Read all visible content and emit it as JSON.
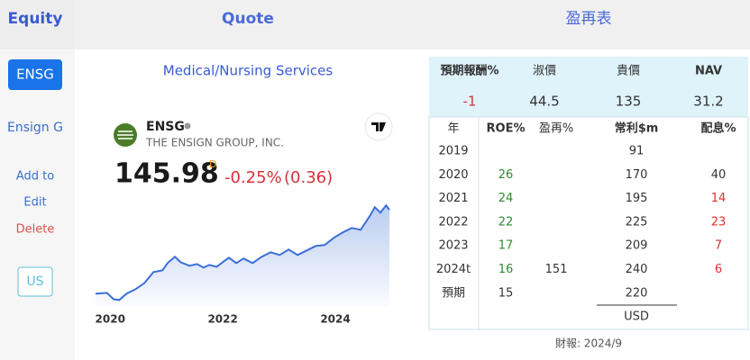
{
  "tabs": {
    "equity": "Equity",
    "quote": "Quote",
    "table": "盈再表"
  },
  "sidebar": {
    "ticker_button": "ENSG",
    "name": "Ensign G",
    "add": "Add to",
    "edit": "Edit",
    "delete": "Delete",
    "market": "US"
  },
  "quote": {
    "industry": "Medical/Nursing Services",
    "ticker": "ENSG",
    "company": "THE ENSIGN GROUP, INC.",
    "price": 145.98,
    "price_flag": "D",
    "change_pct": "-0.25%",
    "change": "(0.36)"
  },
  "chart_data": {
    "type": "line",
    "color": "#3b6fd8",
    "x": [
      2019.74,
      2019.94,
      2020.06,
      2020.16,
      2020.29,
      2020.45,
      2020.61,
      2020.77,
      2020.93,
      2021.02,
      2021.15,
      2021.25,
      2021.41,
      2021.54,
      2021.66,
      2021.76,
      2021.89,
      2022.02,
      2022.11,
      2022.24,
      2022.37,
      2022.53,
      2022.69,
      2022.85,
      2023.01,
      2023.17,
      2023.33,
      2023.49,
      2023.65,
      2023.81,
      2023.97,
      2024.13,
      2024.29,
      2024.45,
      2024.61,
      2024.7,
      2024.8,
      2024.9,
      2024.96
    ],
    "values": [
      47.4,
      48.5,
      41.1,
      40.0,
      47.4,
      52.7,
      60.1,
      72.9,
      75.0,
      83.5,
      90.9,
      84.5,
      80.3,
      82.4,
      78.2,
      81.3,
      79.2,
      85.6,
      89.8,
      83.5,
      88.8,
      83.5,
      90.9,
      96.2,
      93.0,
      99.4,
      93.0,
      98.3,
      103.6,
      104.7,
      113.1,
      119.5,
      124.8,
      122.7,
      138.6,
      149.2,
      142.8,
      151.3,
      146.0
    ],
    "xlim": [
      2019.74,
      2024.96
    ],
    "xticks": [
      2020,
      2022,
      2024
    ],
    "ylim": [
      32,
      160
    ]
  },
  "valuation": {
    "headers": [
      "預期報酬%",
      "淑價",
      "貴價",
      "NAV"
    ],
    "values": [
      -1,
      44.5,
      135,
      31.2
    ]
  },
  "table": {
    "headers": [
      "年",
      "ROE%",
      "盈再%",
      "常利$m",
      "配息%"
    ],
    "rows": [
      [
        2019,
        null,
        null,
        91,
        null
      ],
      [
        2020,
        26,
        null,
        170,
        40
      ],
      [
        2021,
        24,
        null,
        195,
        14
      ],
      [
        2022,
        22,
        null,
        225,
        23
      ],
      [
        2023,
        17,
        null,
        209,
        7
      ],
      [
        "2024t",
        16,
        151,
        240,
        6
      ],
      [
        "預期",
        15,
        null,
        220,
        null
      ]
    ],
    "currency": "USD",
    "footnote": "財報: 2024/9"
  }
}
